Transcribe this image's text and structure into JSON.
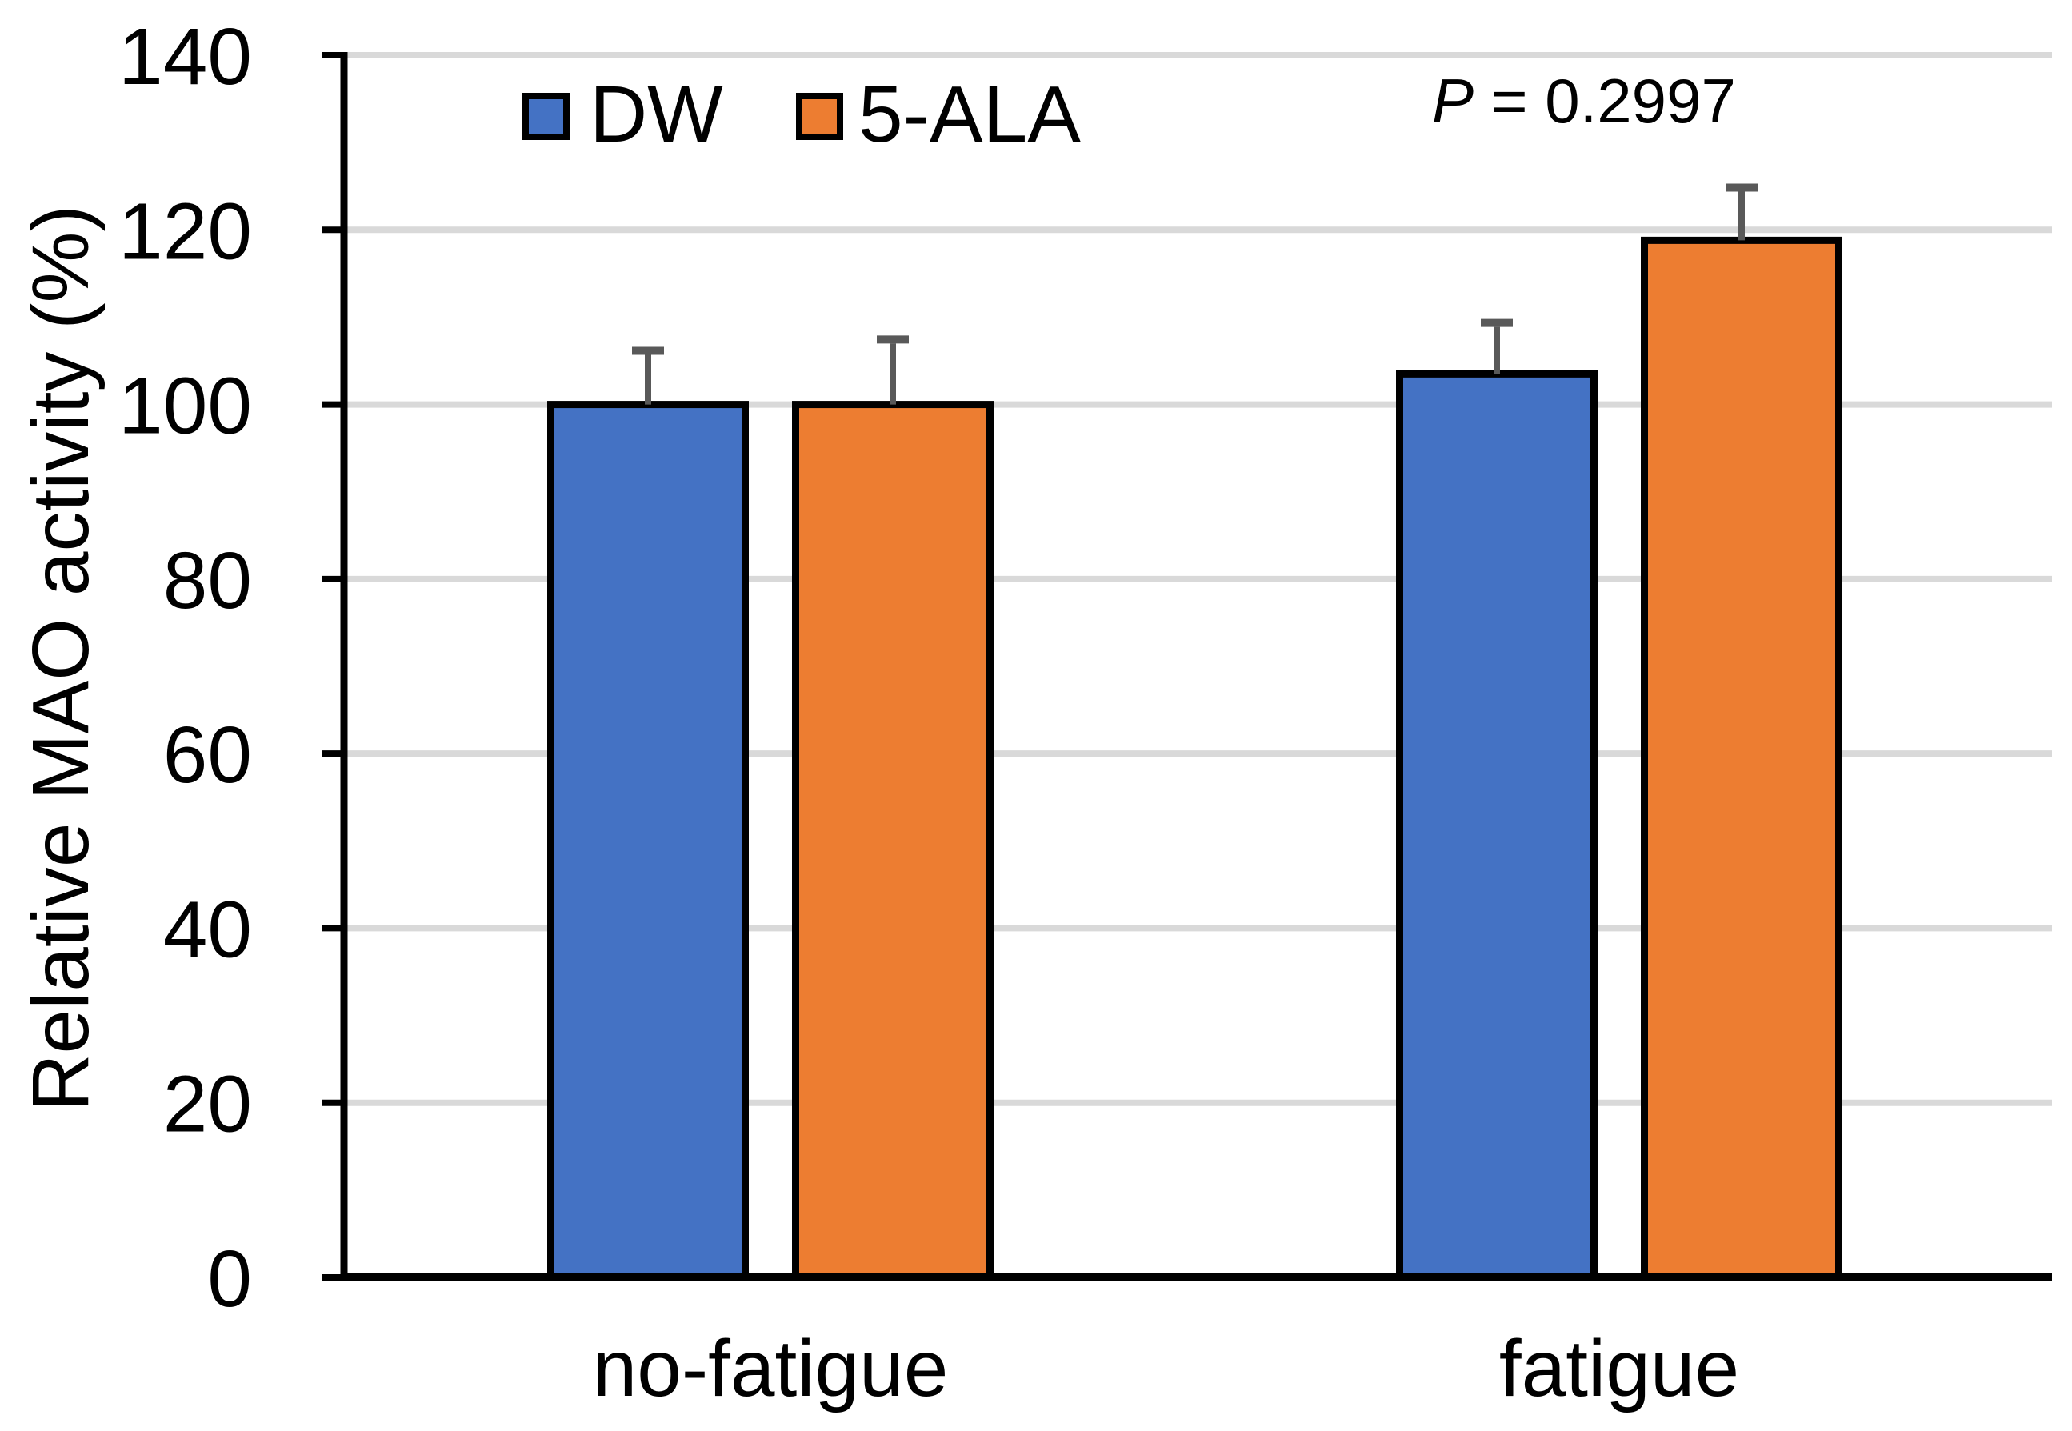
{
  "chart_data": {
    "type": "bar",
    "title": "",
    "categories": [
      "no-fatigue",
      "fatigue"
    ],
    "series": [
      {
        "name": "DW",
        "color": "#4472C4",
        "values": [
          100,
          103.5
        ],
        "errors_upper": [
          6.6,
          6.3
        ]
      },
      {
        "name": "5-ALA",
        "color": "#ED7D31",
        "values": [
          100,
          118.8
        ],
        "errors_upper": [
          7.9,
          6.5
        ]
      }
    ],
    "xlabel": "",
    "ylabel": "Relative MAO activity (%)",
    "ylim": [
      0,
      140
    ],
    "yticks": [
      0,
      20,
      40,
      60,
      80,
      100,
      120,
      140
    ],
    "grid": true,
    "legend_position": "top-inside-left",
    "error_bars": "upper-only",
    "annotation": {
      "text": "P = 0.2997",
      "symbol": "P",
      "rest": "= 0.2997"
    },
    "colors": {
      "bar_border": "#000000",
      "error_bar": "#595959",
      "gridline": "#D9D9D9",
      "axis": "#000000",
      "text": "#000000",
      "background": "#FFFFFF"
    }
  }
}
